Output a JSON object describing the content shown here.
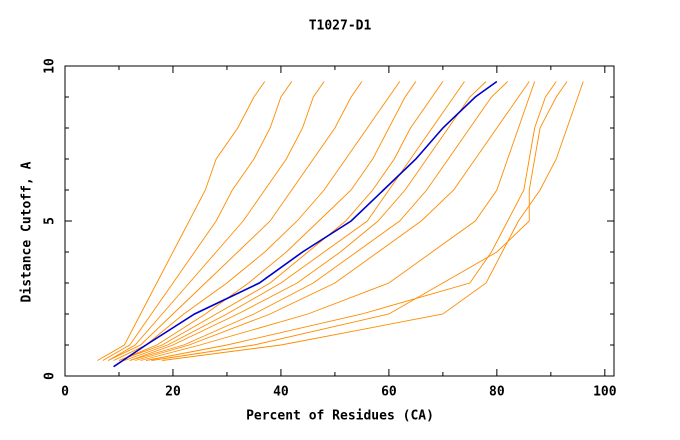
{
  "chart_data": {
    "type": "line",
    "title": "T1027-D1",
    "x_label": "Percent of Residues (CA)",
    "y_label": "Distance Cutoff, A",
    "xlim": [
      0,
      101.7
    ],
    "ylim": [
      0,
      10
    ],
    "xticks": [
      0,
      20,
      40,
      60,
      80,
      100
    ],
    "yticks": [
      0,
      5,
      10
    ],
    "x_minor_ticks": [
      10,
      30,
      50,
      70,
      90
    ],
    "y_minor_ticks": [
      1,
      2,
      3,
      4,
      6,
      7,
      8,
      9
    ],
    "series": [
      {
        "color": "#ff8c00",
        "x": [
          6,
          11,
          14,
          17,
          20,
          23,
          26,
          28,
          32,
          35,
          37
        ],
        "values": [
          0.5,
          1,
          2,
          3,
          4,
          5,
          6,
          7,
          8,
          9,
          9.5
        ]
      },
      {
        "color": "#ff8c00",
        "x": [
          7,
          12,
          16,
          20,
          24,
          28,
          31,
          35,
          38,
          40,
          42
        ],
        "values": [
          0.5,
          1,
          2,
          3,
          4,
          5,
          6,
          7,
          8,
          9,
          9.5
        ]
      },
      {
        "color": "#ff8c00",
        "x": [
          8,
          13,
          18,
          23,
          28,
          33,
          37,
          41,
          44,
          46,
          48
        ],
        "values": [
          0.5,
          1,
          2,
          3,
          4,
          5,
          6,
          7,
          8,
          9,
          9.5
        ]
      },
      {
        "color": "#ff8c00",
        "x": [
          8,
          14,
          20,
          26,
          32,
          38,
          42,
          46,
          50,
          53,
          55
        ],
        "values": [
          0.5,
          1,
          2,
          3,
          4,
          5,
          6,
          7,
          8,
          9,
          9.5
        ]
      },
      {
        "color": "#ff8c00",
        "x": [
          9,
          15,
          22,
          30,
          37,
          43,
          48,
          52,
          56,
          60,
          62
        ],
        "values": [
          0.5,
          1,
          2,
          3,
          4,
          5,
          6,
          7,
          8,
          9,
          9.5
        ]
      },
      {
        "color": "#ff8c00",
        "x": [
          10,
          17,
          26,
          34,
          41,
          47,
          53,
          57,
          60,
          63,
          65
        ],
        "values": [
          0.5,
          1,
          2,
          3,
          4,
          5,
          6,
          7,
          8,
          9,
          9.5
        ]
      },
      {
        "color": "#ff8c00",
        "x": [
          10,
          18,
          28,
          38,
          45,
          52,
          57,
          61,
          64,
          68,
          70
        ],
        "values": [
          0.5,
          1,
          2,
          3,
          4,
          5,
          6,
          7,
          8,
          9,
          9.5
        ]
      },
      {
        "color": "#ff8c00",
        "x": [
          11,
          19,
          30,
          40,
          48,
          56,
          60,
          64,
          68,
          72,
          74
        ],
        "values": [
          0.5,
          1,
          2,
          3,
          4,
          5,
          6,
          7,
          8,
          9,
          9.5
        ]
      },
      {
        "color": "#ff8c00",
        "x": [
          12,
          20,
          32,
          43,
          51,
          58,
          63,
          67,
          71,
          75,
          78
        ],
        "values": [
          0.5,
          1,
          2,
          3,
          4,
          5,
          6,
          7,
          8,
          9,
          9.5
        ]
      },
      {
        "color": "#ff8c00",
        "x": [
          12,
          22,
          35,
          46,
          54,
          62,
          67,
          71,
          75,
          79,
          82
        ],
        "values": [
          0.5,
          1,
          2,
          3,
          4,
          5,
          6,
          7,
          8,
          9,
          9.5
        ]
      },
      {
        "color": "#ff8c00",
        "x": [
          13,
          23,
          38,
          50,
          58,
          66,
          72,
          76,
          80,
          84,
          86
        ],
        "values": [
          0.5,
          1,
          2,
          3,
          4,
          5,
          6,
          7,
          8,
          9,
          9.5
        ]
      },
      {
        "color": "#ff8c00",
        "x": [
          14,
          25,
          45,
          60,
          68,
          76,
          80,
          82,
          84,
          86,
          87
        ],
        "values": [
          0.5,
          1,
          2,
          3,
          4,
          5,
          6,
          7,
          8,
          9,
          9.5
        ]
      },
      {
        "color": "#ff8c00",
        "x": [
          15,
          30,
          55,
          75,
          79,
          82,
          85,
          86,
          87,
          89,
          91
        ],
        "values": [
          0.5,
          1,
          2,
          3,
          4,
          5,
          6,
          7,
          8,
          9,
          9.5
        ]
      },
      {
        "color": "#ff8c00",
        "x": [
          16,
          35,
          60,
          70,
          80,
          86,
          86,
          87,
          88,
          91,
          93
        ],
        "values": [
          0.5,
          1,
          2,
          3,
          4,
          5,
          6,
          7,
          8,
          9,
          9.5
        ]
      },
      {
        "color": "#ff8c00",
        "x": [
          18,
          40,
          70,
          78,
          81,
          84,
          88,
          91,
          93,
          95,
          96
        ],
        "values": [
          0.5,
          1,
          2,
          3,
          4,
          5,
          6,
          7,
          8,
          9,
          9.5
        ]
      },
      {
        "color": "#0000cc",
        "x": [
          9,
          15,
          24,
          36,
          44,
          53,
          59,
          65,
          70,
          76,
          80
        ],
        "values": [
          0.3,
          1,
          2,
          3,
          4,
          5,
          6,
          7,
          8,
          9,
          9.5
        ]
      }
    ]
  }
}
